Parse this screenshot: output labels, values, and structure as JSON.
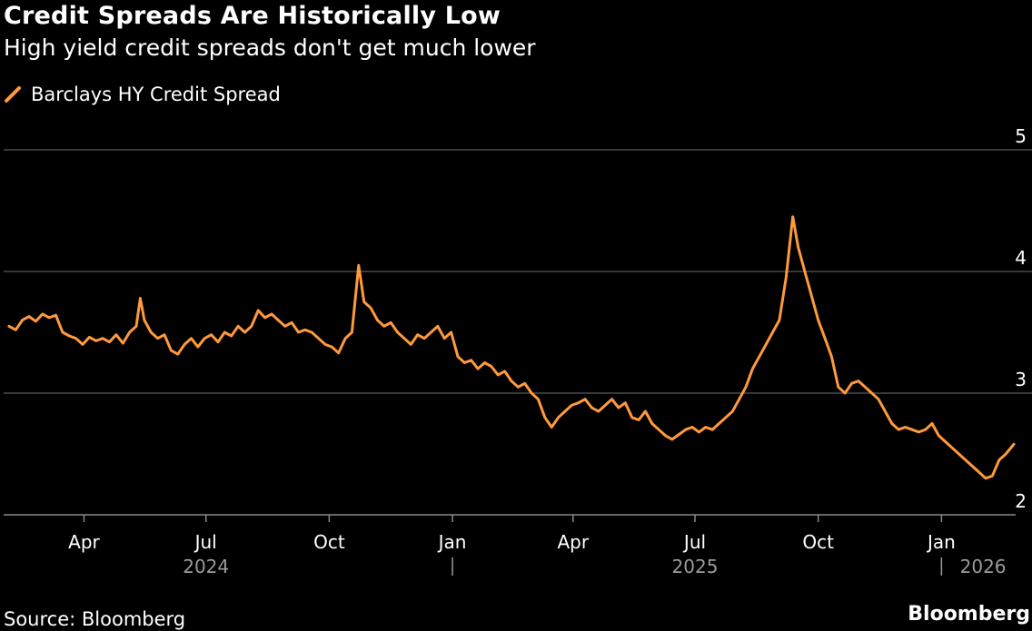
{
  "title": "Credit Spreads Are Historically Low",
  "subtitle": "High yield credit spreads don't get much lower",
  "legend": {
    "label": "Barclays HY Credit Spread",
    "color": "#ff9a3c"
  },
  "source": "Source: Bloomberg",
  "brand": "Bloomberg",
  "chart_data": {
    "type": "line",
    "title": "Credit Spreads Are Historically Low",
    "subtitle": "High yield credit spreads don't get much lower",
    "xlabel": "",
    "ylabel": "",
    "ylim": [
      2,
      5
    ],
    "xlim": [
      "2024-02-01",
      "2026-02-24"
    ],
    "y_axis_position": "right",
    "y_ticks": [
      2,
      3,
      4,
      5
    ],
    "x_tick_labels": [
      {
        "date": "2024-04-01",
        "label": "Apr"
      },
      {
        "date": "2024-07-01",
        "label": "Jul"
      },
      {
        "date": "2024-10-01",
        "label": "Oct"
      },
      {
        "date": "2025-01-01",
        "label": "Jan"
      },
      {
        "date": "2025-04-01",
        "label": "Apr"
      },
      {
        "date": "2025-07-01",
        "label": "Jul"
      },
      {
        "date": "2025-10-01",
        "label": "Oct"
      },
      {
        "date": "2026-01-01",
        "label": "Jan"
      }
    ],
    "year_labels": [
      {
        "label": "2024",
        "date": "2024-07-01"
      },
      {
        "label": "2025",
        "date": "2025-07-01"
      },
      {
        "label": "2026",
        "date": "2026-02-01"
      }
    ],
    "year_dividers": [
      "2025-01-01",
      "2026-01-01"
    ],
    "grid": "horizontal",
    "legend_position": "top-left",
    "series": [
      {
        "name": "Barclays HY Credit Spread",
        "color": "#ff9a3c",
        "points": [
          [
            "2024-02-05",
            3.55
          ],
          [
            "2024-02-10",
            3.52
          ],
          [
            "2024-02-15",
            3.6
          ],
          [
            "2024-02-20",
            3.63
          ],
          [
            "2024-02-25",
            3.59
          ],
          [
            "2024-03-01",
            3.65
          ],
          [
            "2024-03-06",
            3.62
          ],
          [
            "2024-03-11",
            3.64
          ],
          [
            "2024-03-16",
            3.5
          ],
          [
            "2024-03-21",
            3.47
          ],
          [
            "2024-03-26",
            3.45
          ],
          [
            "2024-03-31",
            3.4
          ],
          [
            "2024-04-05",
            3.46
          ],
          [
            "2024-04-10",
            3.43
          ],
          [
            "2024-04-15",
            3.45
          ],
          [
            "2024-04-20",
            3.42
          ],
          [
            "2024-04-25",
            3.48
          ],
          [
            "2024-04-30",
            3.41
          ],
          [
            "2024-05-05",
            3.5
          ],
          [
            "2024-05-10",
            3.55
          ],
          [
            "2024-05-13",
            3.78
          ],
          [
            "2024-05-16",
            3.6
          ],
          [
            "2024-05-21",
            3.5
          ],
          [
            "2024-05-26",
            3.45
          ],
          [
            "2024-05-31",
            3.48
          ],
          [
            "2024-06-05",
            3.35
          ],
          [
            "2024-06-10",
            3.32
          ],
          [
            "2024-06-15",
            3.4
          ],
          [
            "2024-06-20",
            3.45
          ],
          [
            "2024-06-25",
            3.38
          ],
          [
            "2024-06-30",
            3.45
          ],
          [
            "2024-07-05",
            3.48
          ],
          [
            "2024-07-10",
            3.42
          ],
          [
            "2024-07-15",
            3.5
          ],
          [
            "2024-07-20",
            3.47
          ],
          [
            "2024-07-25",
            3.55
          ],
          [
            "2024-07-30",
            3.5
          ],
          [
            "2024-08-04",
            3.55
          ],
          [
            "2024-08-09",
            3.68
          ],
          [
            "2024-08-14",
            3.62
          ],
          [
            "2024-08-19",
            3.65
          ],
          [
            "2024-08-24",
            3.6
          ],
          [
            "2024-08-29",
            3.55
          ],
          [
            "2024-09-03",
            3.58
          ],
          [
            "2024-09-08",
            3.5
          ],
          [
            "2024-09-13",
            3.52
          ],
          [
            "2024-09-18",
            3.5
          ],
          [
            "2024-09-23",
            3.45
          ],
          [
            "2024-09-28",
            3.4
          ],
          [
            "2024-10-03",
            3.38
          ],
          [
            "2024-10-08",
            3.33
          ],
          [
            "2024-10-13",
            3.45
          ],
          [
            "2024-10-18",
            3.5
          ],
          [
            "2024-10-23",
            4.05
          ],
          [
            "2024-10-27",
            3.75
          ],
          [
            "2024-11-01",
            3.7
          ],
          [
            "2024-11-06",
            3.6
          ],
          [
            "2024-11-11",
            3.55
          ],
          [
            "2024-11-16",
            3.58
          ],
          [
            "2024-11-21",
            3.5
          ],
          [
            "2024-11-26",
            3.45
          ],
          [
            "2024-12-01",
            3.4
          ],
          [
            "2024-12-06",
            3.48
          ],
          [
            "2024-12-11",
            3.45
          ],
          [
            "2024-12-16",
            3.5
          ],
          [
            "2024-12-21",
            3.55
          ],
          [
            "2024-12-26",
            3.45
          ],
          [
            "2024-12-31",
            3.5
          ],
          [
            "2025-01-05",
            3.3
          ],
          [
            "2025-01-10",
            3.25
          ],
          [
            "2025-01-15",
            3.27
          ],
          [
            "2025-01-20",
            3.2
          ],
          [
            "2025-01-25",
            3.25
          ],
          [
            "2025-01-30",
            3.22
          ],
          [
            "2025-02-04",
            3.15
          ],
          [
            "2025-02-09",
            3.18
          ],
          [
            "2025-02-14",
            3.1
          ],
          [
            "2025-02-19",
            3.05
          ],
          [
            "2025-02-24",
            3.08
          ],
          [
            "2025-03-01",
            3.0
          ],
          [
            "2025-03-06",
            2.95
          ],
          [
            "2025-03-11",
            2.8
          ],
          [
            "2025-03-16",
            2.72
          ],
          [
            "2025-03-21",
            2.8
          ],
          [
            "2025-03-26",
            2.85
          ],
          [
            "2025-03-31",
            2.9
          ],
          [
            "2025-04-05",
            2.92
          ],
          [
            "2025-04-10",
            2.95
          ],
          [
            "2025-04-15",
            2.88
          ],
          [
            "2025-04-20",
            2.85
          ],
          [
            "2025-04-25",
            2.9
          ],
          [
            "2025-04-30",
            2.95
          ],
          [
            "2025-05-05",
            2.88
          ],
          [
            "2025-05-10",
            2.92
          ],
          [
            "2025-05-15",
            2.8
          ],
          [
            "2025-05-20",
            2.78
          ],
          [
            "2025-05-25",
            2.85
          ],
          [
            "2025-05-30",
            2.75
          ],
          [
            "2025-06-04",
            2.7
          ],
          [
            "2025-06-09",
            2.65
          ],
          [
            "2025-06-14",
            2.62
          ],
          [
            "2025-06-19",
            2.66
          ],
          [
            "2025-06-24",
            2.7
          ],
          [
            "2025-06-29",
            2.72
          ],
          [
            "2025-07-04",
            2.68
          ],
          [
            "2025-07-09",
            2.72
          ],
          [
            "2025-07-14",
            2.7
          ],
          [
            "2025-07-19",
            2.75
          ],
          [
            "2025-07-24",
            2.8
          ],
          [
            "2025-07-29",
            2.85
          ],
          [
            "2025-08-03",
            2.95
          ],
          [
            "2025-08-08",
            3.05
          ],
          [
            "2025-08-13",
            3.2
          ],
          [
            "2025-08-18",
            3.3
          ],
          [
            "2025-08-23",
            3.4
          ],
          [
            "2025-08-28",
            3.5
          ],
          [
            "2025-09-02",
            3.6
          ],
          [
            "2025-09-07",
            3.95
          ],
          [
            "2025-09-12",
            4.45
          ],
          [
            "2025-09-16",
            4.2
          ],
          [
            "2025-09-21",
            4.0
          ],
          [
            "2025-09-26",
            3.8
          ],
          [
            "2025-10-01",
            3.6
          ],
          [
            "2025-10-06",
            3.45
          ],
          [
            "2025-10-11",
            3.3
          ],
          [
            "2025-10-16",
            3.05
          ],
          [
            "2025-10-21",
            3.0
          ],
          [
            "2025-10-26",
            3.08
          ],
          [
            "2025-10-31",
            3.1
          ],
          [
            "2025-11-05",
            3.05
          ],
          [
            "2025-11-10",
            3.0
          ],
          [
            "2025-11-15",
            2.95
          ],
          [
            "2025-11-20",
            2.85
          ],
          [
            "2025-11-25",
            2.75
          ],
          [
            "2025-11-30",
            2.7
          ],
          [
            "2025-12-05",
            2.72
          ],
          [
            "2025-12-10",
            2.7
          ],
          [
            "2025-12-15",
            2.68
          ],
          [
            "2025-12-20",
            2.7
          ],
          [
            "2025-12-25",
            2.75
          ],
          [
            "2025-12-30",
            2.65
          ],
          [
            "2026-01-04",
            2.6
          ],
          [
            "2026-01-09",
            2.55
          ],
          [
            "2026-01-14",
            2.5
          ],
          [
            "2026-01-19",
            2.45
          ],
          [
            "2026-01-24",
            2.4
          ],
          [
            "2026-01-29",
            2.35
          ],
          [
            "2026-02-03",
            2.3
          ],
          [
            "2026-02-08",
            2.32
          ],
          [
            "2026-02-13",
            2.45
          ],
          [
            "2026-02-18",
            2.5
          ],
          [
            "2026-02-24",
            2.58
          ]
        ]
      }
    ]
  }
}
